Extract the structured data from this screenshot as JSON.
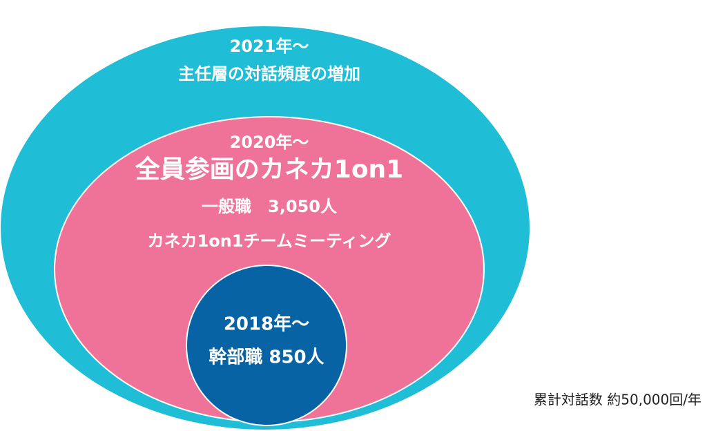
{
  "outer": {
    "year": "2021年～",
    "label": "主任層の対話頻度の増加"
  },
  "middle": {
    "year": "2020年～",
    "title": "全員参画のカネカ1on1",
    "members": "一般職　3,050人",
    "label": "カネカ1on1チームミーティング"
  },
  "inner": {
    "year": "2018年～",
    "members": "幹部職 850人"
  },
  "note": "累計対話数 約50,000回/年"
}
